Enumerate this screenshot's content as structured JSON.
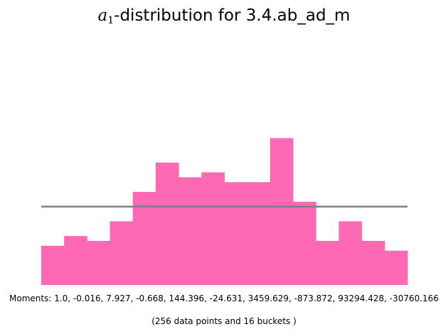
{
  "chart_data": {
    "type": "bar",
    "title_math": "a",
    "title_math_sub": "1",
    "title_rest": "-distribution for 3.4.ab_ad_m",
    "xlabel": "",
    "ylabel": "",
    "grid": false,
    "axes_visible": false,
    "bar_color": "#ff69b4",
    "reference_line_color": "#808080",
    "reference_line_value": 16,
    "num_buckets": 16,
    "ylim": [
      0,
      45
    ],
    "values": [
      8,
      10,
      9,
      13,
      19,
      25,
      22,
      23,
      21,
      21,
      30,
      17,
      9,
      13,
      9,
      7
    ],
    "moments_text": "Moments: 1.0, -0.016, 7.927, -0.668, 144.396, -24.631, 3459.629, -873.872, 93294.428, -30760.166",
    "count_text": "(256 data points and 16 buckets )"
  }
}
